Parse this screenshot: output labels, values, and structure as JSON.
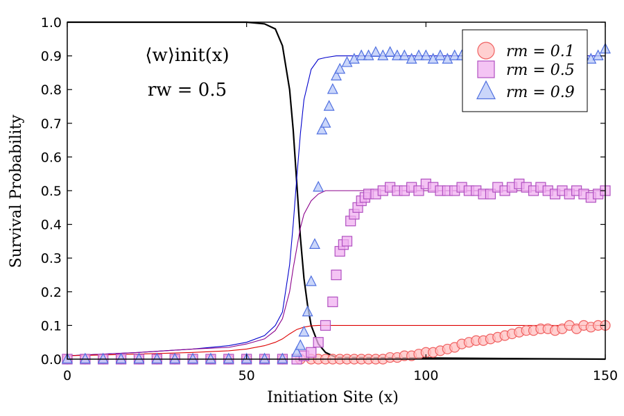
{
  "chart_data": {
    "type": "scatter",
    "xlabel": "Initiation Site (x)",
    "ylabel": "Survival Probability",
    "xlim": [
      0,
      150
    ],
    "ylim": [
      0,
      1.0
    ],
    "xticks": [
      "0",
      "50",
      "100",
      "150"
    ],
    "yticks": [
      "0.0",
      "0.1",
      "0.2",
      "0.3",
      "0.4",
      "0.5",
      "0.6",
      "0.7",
      "0.8",
      "0.9",
      "1.0"
    ],
    "grid": false,
    "legend_position": "top-right",
    "annotations": [
      "⟨w⟩init(x)",
      "rw = 0.5"
    ],
    "series": [
      {
        "name": "rm = 0.1",
        "marker": "circle",
        "fill": "#ffc0c0",
        "stroke": "#f06060",
        "x": [
          0,
          5,
          10,
          15,
          20,
          25,
          30,
          35,
          40,
          45,
          50,
          55,
          60,
          65,
          68,
          70,
          72,
          74,
          76,
          78,
          80,
          82,
          84,
          86,
          88,
          90,
          92,
          94,
          96,
          98,
          100,
          102,
          104,
          106,
          108,
          110,
          112,
          114,
          116,
          118,
          120,
          122,
          124,
          126,
          128,
          130,
          132,
          134,
          136,
          138,
          140,
          142,
          144,
          146,
          148,
          150
        ],
        "y": [
          0.0,
          0.0,
          0.0,
          0.0,
          0.0,
          0.0,
          0.0,
          0.0,
          0.0,
          0.0,
          0.0,
          0.0,
          0.0,
          0.0,
          0.0,
          0.0,
          0.0,
          0.0,
          0.0,
          0.0,
          0.0,
          0.0,
          0.0,
          0.0,
          0.0,
          0.005,
          0.005,
          0.01,
          0.01,
          0.015,
          0.02,
          0.02,
          0.025,
          0.03,
          0.035,
          0.045,
          0.05,
          0.055,
          0.055,
          0.06,
          0.065,
          0.07,
          0.075,
          0.08,
          0.085,
          0.085,
          0.09,
          0.09,
          0.085,
          0.09,
          0.1,
          0.09,
          0.1,
          0.095,
          0.1,
          0.1
        ]
      },
      {
        "name": "rm = 0.5",
        "marker": "square",
        "fill": "#f0b0f0",
        "stroke": "#b050c0",
        "x": [
          0,
          5,
          10,
          15,
          20,
          25,
          30,
          35,
          40,
          45,
          50,
          55,
          60,
          64,
          66,
          68,
          70,
          72,
          74,
          75,
          76,
          77,
          78,
          79,
          80,
          81,
          82,
          83,
          84,
          86,
          88,
          90,
          92,
          94,
          96,
          98,
          100,
          102,
          104,
          106,
          108,
          110,
          112,
          114,
          116,
          118,
          120,
          122,
          124,
          126,
          128,
          130,
          132,
          134,
          136,
          138,
          140,
          142,
          144,
          146,
          148,
          150
        ],
        "y": [
          0.0,
          0.0,
          0.0,
          0.0,
          0.0,
          0.0,
          0.0,
          0.0,
          0.0,
          0.0,
          0.0,
          0.0,
          0.0,
          0.0,
          0.01,
          0.02,
          0.05,
          0.1,
          0.17,
          0.25,
          0.32,
          0.34,
          0.35,
          0.41,
          0.43,
          0.45,
          0.47,
          0.48,
          0.49,
          0.49,
          0.5,
          0.51,
          0.5,
          0.5,
          0.51,
          0.5,
          0.52,
          0.51,
          0.5,
          0.5,
          0.5,
          0.51,
          0.5,
          0.5,
          0.49,
          0.49,
          0.51,
          0.5,
          0.51,
          0.52,
          0.51,
          0.5,
          0.51,
          0.5,
          0.49,
          0.5,
          0.49,
          0.5,
          0.49,
          0.48,
          0.49,
          0.5
        ]
      },
      {
        "name": "rm = 0.9",
        "marker": "triangle",
        "fill": "#b8c8f8",
        "stroke": "#5070e0",
        "x": [
          0,
          5,
          10,
          15,
          20,
          25,
          30,
          35,
          40,
          45,
          50,
          55,
          60,
          64,
          65,
          66,
          67,
          68,
          69,
          70,
          71,
          72,
          73,
          74,
          75,
          76,
          78,
          80,
          82,
          84,
          86,
          88,
          90,
          92,
          94,
          96,
          98,
          100,
          102,
          104,
          106,
          108,
          110,
          112,
          114,
          116,
          118,
          120,
          122,
          124,
          126,
          128,
          130,
          132,
          134,
          136,
          138,
          140,
          142,
          144,
          146,
          148,
          150
        ],
        "y": [
          0.0,
          0.0,
          0.0,
          0.0,
          0.0,
          0.0,
          0.0,
          0.0,
          0.0,
          0.0,
          0.0,
          0.0,
          0.0,
          0.02,
          0.04,
          0.08,
          0.14,
          0.23,
          0.34,
          0.51,
          0.68,
          0.7,
          0.75,
          0.8,
          0.84,
          0.86,
          0.88,
          0.89,
          0.9,
          0.9,
          0.91,
          0.9,
          0.91,
          0.9,
          0.9,
          0.89,
          0.9,
          0.9,
          0.89,
          0.9,
          0.89,
          0.9,
          0.9,
          0.9,
          0.89,
          0.9,
          0.9,
          0.89,
          0.9,
          0.9,
          0.89,
          0.9,
          0.9,
          0.91,
          0.9,
          0.9,
          0.9,
          0.89,
          0.9,
          0.9,
          0.89,
          0.9,
          0.92
        ]
      }
    ],
    "curves": [
      {
        "stroke": "#000000",
        "x": [
          0,
          50,
          55,
          58,
          60,
          62,
          63,
          64,
          65,
          66,
          67,
          68,
          70,
          72,
          75,
          150
        ],
        "y": [
          1.0,
          1.0,
          0.995,
          0.98,
          0.93,
          0.8,
          0.68,
          0.52,
          0.36,
          0.24,
          0.16,
          0.1,
          0.045,
          0.02,
          0.005,
          0.0
        ]
      },
      {
        "stroke": "#0000cc",
        "x": [
          0,
          20,
          35,
          45,
          50,
          55,
          58,
          60,
          62,
          63,
          64,
          65,
          66,
          68,
          70,
          72,
          75,
          150
        ],
        "y": [
          0.01,
          0.02,
          0.03,
          0.04,
          0.05,
          0.07,
          0.1,
          0.14,
          0.28,
          0.4,
          0.54,
          0.67,
          0.77,
          0.86,
          0.89,
          0.895,
          0.9,
          0.9
        ]
      },
      {
        "stroke": "#8b008b",
        "x": [
          0,
          20,
          35,
          45,
          50,
          55,
          58,
          60,
          62,
          63,
          64,
          65,
          66,
          68,
          70,
          72,
          150
        ],
        "y": [
          0.01,
          0.02,
          0.03,
          0.035,
          0.045,
          0.06,
          0.085,
          0.12,
          0.2,
          0.27,
          0.33,
          0.39,
          0.43,
          0.47,
          0.49,
          0.5,
          0.5
        ]
      },
      {
        "stroke": "#dd0000",
        "x": [
          0,
          20,
          35,
          45,
          50,
          55,
          58,
          60,
          62,
          64,
          66,
          68,
          70,
          150
        ],
        "y": [
          0.01,
          0.015,
          0.02,
          0.025,
          0.03,
          0.04,
          0.05,
          0.06,
          0.075,
          0.088,
          0.095,
          0.099,
          0.1,
          0.1
        ]
      }
    ]
  }
}
